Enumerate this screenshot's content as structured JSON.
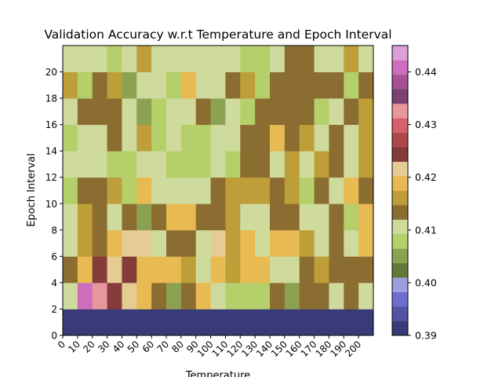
{
  "chart_data": {
    "type": "heatmap",
    "title": "Validation Accuracy w.r.t Temperature and Epoch Interval",
    "xlabel": "Temperature",
    "ylabel": "Epoch Interval",
    "x_tick_labels": [
      "0",
      "10",
      "20",
      "30",
      "40",
      "50",
      "60",
      "70",
      "80",
      "90",
      "100",
      "110",
      "120",
      "130",
      "140",
      "150",
      "160",
      "170",
      "180",
      "190",
      "200"
    ],
    "y_tick_labels": [
      "0",
      "2",
      "4",
      "6",
      "8",
      "10",
      "12",
      "14",
      "16",
      "18",
      "20"
    ],
    "ylim": [
      0,
      22
    ],
    "colorbar": {
      "colormap": "tab20b",
      "min": 0.39,
      "max": 0.445,
      "tick_labels": [
        "0.39",
        "0.40",
        "0.41",
        "0.42",
        "0.43",
        "0.44"
      ],
      "tick_values": [
        0.39,
        0.4,
        0.41,
        0.42,
        0.43,
        0.44
      ]
    },
    "colormap_colors": [
      "#393b79",
      "#5254a3",
      "#6b6ecf",
      "#9c9ede",
      "#637939",
      "#8ca252",
      "#b5cf6b",
      "#cedb9c",
      "#8c6d31",
      "#bd9e39",
      "#e7ba52",
      "#e7cb94",
      "#843c39",
      "#ad494a",
      "#d6616b",
      "#e7969c",
      "#7b4173",
      "#a55194",
      "#ce6dbd",
      "#de9ed6"
    ],
    "grid": false,
    "rows_bottom_to_top": [
      [
        0,
        0,
        0,
        0,
        0,
        0,
        0,
        0,
        0,
        0,
        0,
        0,
        0,
        0,
        0,
        0,
        0,
        0,
        0,
        0,
        0
      ],
      [
        7,
        18,
        15,
        12,
        11,
        10,
        8,
        5,
        8,
        10,
        7,
        6,
        6,
        6,
        8,
        5,
        8,
        8,
        7,
        8,
        7
      ],
      [
        8,
        10,
        12,
        11,
        12,
        10,
        10,
        10,
        9,
        7,
        10,
        9,
        10,
        10,
        7,
        7,
        8,
        9,
        8,
        8,
        8
      ],
      [
        7,
        9,
        8,
        10,
        11,
        11,
        7,
        8,
        8,
        7,
        11,
        9,
        10,
        7,
        10,
        10,
        9,
        7,
        8,
        7,
        10
      ],
      [
        7,
        9,
        8,
        7,
        8,
        5,
        8,
        10,
        10,
        8,
        8,
        9,
        7,
        7,
        8,
        8,
        7,
        7,
        8,
        6,
        10
      ],
      [
        6,
        8,
        8,
        9,
        6,
        10,
        7,
        7,
        7,
        7,
        8,
        9,
        9,
        9,
        8,
        9,
        6,
        8,
        7,
        10,
        8
      ],
      [
        7,
        7,
        7,
        6,
        6,
        7,
        7,
        6,
        6,
        6,
        7,
        6,
        8,
        8,
        7,
        9,
        7,
        9,
        8,
        7,
        9
      ],
      [
        6,
        7,
        7,
        8,
        7,
        9,
        6,
        7,
        6,
        6,
        7,
        7,
        8,
        8,
        10,
        8,
        9,
        7,
        8,
        7,
        9
      ],
      [
        7,
        8,
        8,
        8,
        7,
        5,
        6,
        7,
        7,
        8,
        5,
        7,
        6,
        8,
        8,
        8,
        8,
        6,
        7,
        8,
        9
      ],
      [
        9,
        6,
        8,
        9,
        5,
        7,
        7,
        6,
        10,
        7,
        7,
        8,
        9,
        6,
        8,
        8,
        8,
        8,
        8,
        6,
        8
      ],
      [
        7,
        7,
        7,
        6,
        7,
        9,
        7,
        7,
        7,
        7,
        7,
        7,
        6,
        6,
        7,
        8,
        8,
        7,
        7,
        9,
        7
      ]
    ]
  }
}
